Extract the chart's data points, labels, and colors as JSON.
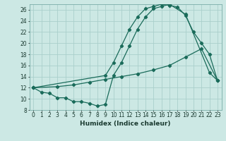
{
  "xlabel": "Humidex (Indice chaleur)",
  "bg_color": "#cce8e4",
  "grid_color": "#aacfcb",
  "line_color": "#1a6b5a",
  "xlim": [
    -0.5,
    23.5
  ],
  "ylim": [
    8,
    27
  ],
  "xticks": [
    0,
    1,
    2,
    3,
    4,
    5,
    6,
    7,
    8,
    9,
    10,
    11,
    12,
    13,
    14,
    15,
    16,
    17,
    18,
    19,
    20,
    21,
    22,
    23
  ],
  "yticks": [
    8,
    10,
    12,
    14,
    16,
    18,
    20,
    22,
    24,
    26
  ],
  "line1_x": [
    0,
    1,
    2,
    3,
    4,
    5,
    6,
    7,
    8,
    9,
    10,
    11,
    12,
    13,
    14,
    15,
    16,
    17,
    19,
    22,
    23
  ],
  "line1_y": [
    12,
    11.2,
    11.0,
    10.2,
    10.2,
    9.5,
    9.5,
    9.2,
    8.7,
    9.0,
    14.2,
    16.5,
    19.5,
    22.5,
    24.7,
    26.2,
    26.6,
    27.0,
    25.2,
    14.7,
    13.3
  ],
  "line2_x": [
    0,
    3,
    5,
    7,
    9,
    11,
    13,
    15,
    17,
    19,
    21,
    23
  ],
  "line2_y": [
    12.0,
    12.2,
    12.5,
    13.0,
    13.5,
    14.0,
    14.5,
    15.2,
    16.0,
    17.5,
    19.0,
    13.3
  ],
  "line3_x": [
    0,
    9,
    10,
    11,
    12,
    13,
    14,
    15,
    16,
    17,
    18,
    19,
    20,
    21,
    22,
    23
  ],
  "line3_y": [
    12.0,
    14.2,
    16.5,
    19.5,
    22.5,
    24.7,
    26.2,
    26.6,
    27.0,
    26.8,
    26.5,
    25.0,
    22.0,
    20.0,
    18.0,
    13.3
  ]
}
